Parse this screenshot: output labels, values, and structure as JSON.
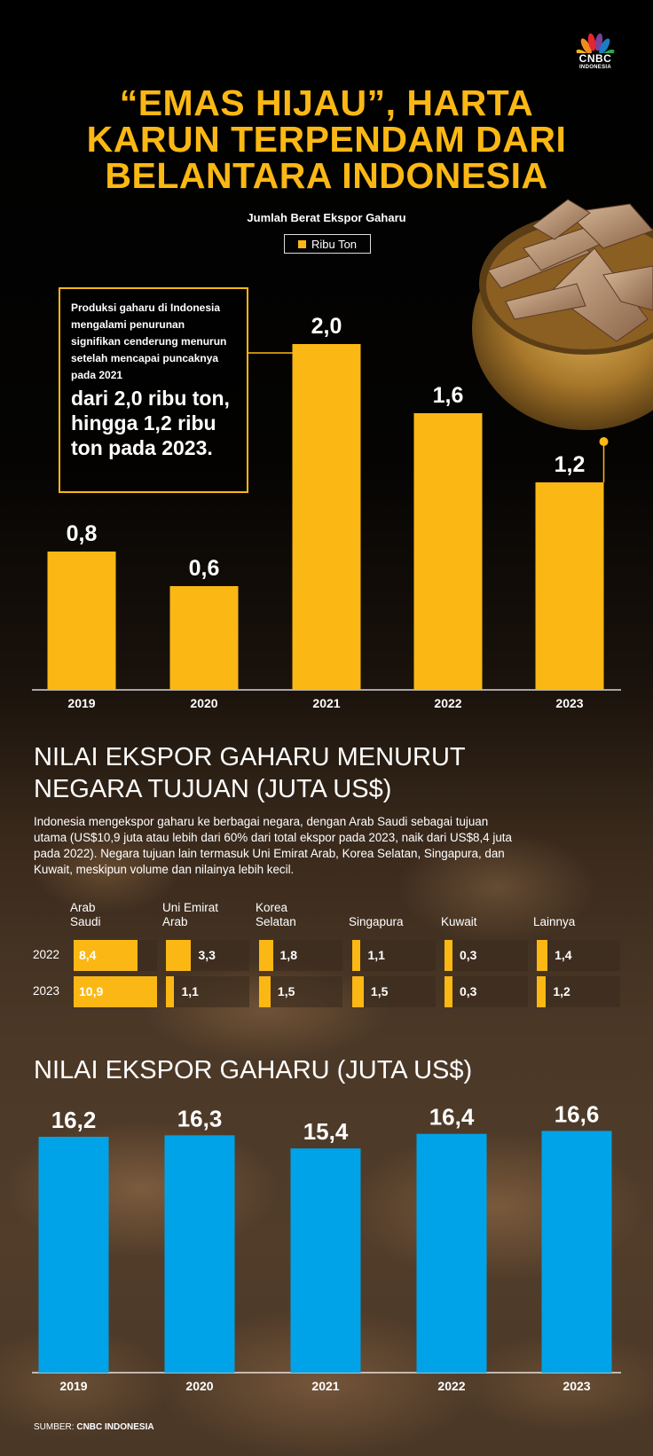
{
  "brand": {
    "name": "CNBC",
    "sub": "INDONESIA"
  },
  "title": {
    "line1": "“EMAS HIJAU”, HARTA",
    "line2": "KARUN TERPENDAM DARI",
    "line3": "BELANTARA INDONESIA"
  },
  "colors": {
    "accent": "#fbb814",
    "blue": "#00a3e8",
    "background": "#000000"
  },
  "chart_data": [
    {
      "type": "bar",
      "title": "Jumlah Berat Ekspor Gaharu",
      "legend": "Ribu Ton",
      "categories": [
        "2019",
        "2020",
        "2021",
        "2022",
        "2023"
      ],
      "values": [
        0.8,
        0.6,
        2.0,
        1.6,
        1.2
      ],
      "labels": [
        "0,8",
        "0,6",
        "2,0",
        "1,6",
        "1,2"
      ],
      "ylim": [
        0,
        2.0
      ]
    },
    {
      "type": "bar",
      "title": "NILAI EKSPOR GAHARU MENURUT NEGARA TUJUAN (JUTA US$)",
      "categories": [
        "Arab Saudi",
        "Uni Emirat Arab",
        "Korea Selatan",
        "Singapura",
        "Kuwait",
        "Lainnya"
      ],
      "series": [
        {
          "name": "2022",
          "values": [
            8.4,
            3.3,
            1.8,
            1.1,
            0.3,
            1.4
          ],
          "labels": [
            "8,4",
            "3,3",
            "1,8",
            "1,1",
            "0,3",
            "1,4"
          ]
        },
        {
          "name": "2023",
          "values": [
            10.9,
            1.1,
            1.5,
            1.5,
            0.3,
            1.2
          ],
          "labels": [
            "10,9",
            "1,1",
            "1,5",
            "1,5",
            "0,3",
            "1,2"
          ]
        }
      ]
    },
    {
      "type": "bar",
      "title": "NILAI EKSPOR GAHARU (JUTA US$)",
      "categories": [
        "2019",
        "2020",
        "2021",
        "2022",
        "2023"
      ],
      "values": [
        16.2,
        16.3,
        15.4,
        16.4,
        16.6
      ],
      "labels": [
        "16,2",
        "16,3",
        "15,4",
        "16,4",
        "16,6"
      ]
    }
  ],
  "note": {
    "small": "Produksi gaharu di Indonesia mengalami penurunan signifikan cenderung menurun setelah mencapai puncaknya pada 2021",
    "big": "dari 2,0 ribu ton, hingga 1,2 ribu ton pada 2023."
  },
  "section2": {
    "title_line1": "NILAI EKSPOR GAHARU MENURUT",
    "title_line2": "NEGARA TUJUAN (JUTA US$)",
    "description": "Indonesia mengekspor gaharu ke berbagai negara, dengan Arab Saudi sebagai tujuan utama (US$10,9 juta atau lebih dari 60% dari total ekspor pada 2023, naik dari US$8,4 juta pada 2022). Negara tujuan lain termasuk Uni Emirat Arab, Korea Selatan, Singapura, dan Kuwait, meskipun volume dan nilainya lebih kecil.",
    "headers": [
      {
        "line1": "Arab",
        "line2": "Saudi"
      },
      {
        "line1": "Uni Emirat",
        "line2": "Arab"
      },
      {
        "line1": "Korea",
        "line2": "Selatan"
      },
      {
        "line1": "",
        "line2": "Singapura"
      },
      {
        "line1": "",
        "line2": "Kuwait"
      },
      {
        "line1": "",
        "line2": "Lainnya"
      }
    ],
    "years": [
      "2022",
      "2023"
    ]
  },
  "section3": {
    "title": "NILAI EKSPOR GAHARU (JUTA US$)"
  },
  "source": {
    "label": "SUMBER:",
    "name": "CNBC INDONESIA"
  }
}
